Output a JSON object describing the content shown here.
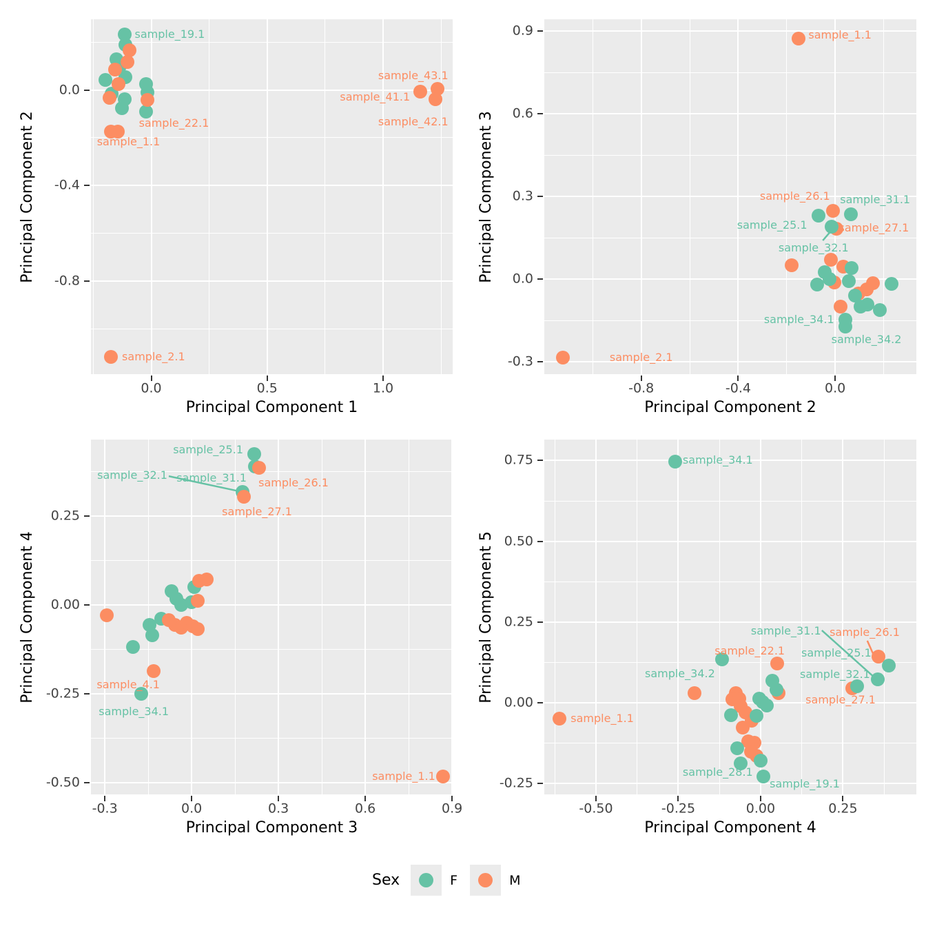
{
  "figure": {
    "background": "#ffffff",
    "panel_background": "#EBEBEB",
    "grid_color": "#FFFFFF",
    "tick_text_color": "#444444",
    "axis_title_color": "#000000"
  },
  "legend": {
    "title": "Sex",
    "position": "bottom",
    "entries": [
      {
        "label": "F",
        "color": "#66C2A5"
      },
      {
        "label": "M",
        "color": "#FC8D62"
      }
    ]
  },
  "sex_colors": {
    "F": "#66C2A5",
    "M": "#FC8D62"
  },
  "chart_data": [
    {
      "type": "scatter",
      "name": "pc1-vs-pc2",
      "xlabel": "Principal Component 1",
      "ylabel": "Principal Component 2",
      "xlim": [
        -0.26,
        1.3
      ],
      "ylim": [
        -1.19,
        0.296
      ],
      "grid": true,
      "xticks": [
        {
          "v": 0.0,
          "label": "0.0"
        },
        {
          "v": 0.5,
          "label": "0.5"
        },
        {
          "v": 1.0,
          "label": "1.0"
        }
      ],
      "yticks": [
        {
          "v": 0.0,
          "label": "0.0"
        },
        {
          "v": -0.4,
          "label": "-0.4"
        },
        {
          "v": -0.8,
          "label": "-0.8"
        }
      ],
      "points": [
        {
          "x": -0.113,
          "y": 0.232,
          "sex": "F",
          "sample": "sample_19.1"
        },
        {
          "x": -0.11,
          "y": 0.188,
          "sex": "F"
        },
        {
          "x": -0.149,
          "y": 0.13,
          "sex": "F"
        },
        {
          "x": -0.134,
          "y": 0.099,
          "sex": "F"
        },
        {
          "x": -0.199,
          "y": 0.043,
          "sex": "F"
        },
        {
          "x": -0.11,
          "y": 0.055,
          "sex": "F"
        },
        {
          "x": -0.17,
          "y": -0.017,
          "sex": "F"
        },
        {
          "x": -0.113,
          "y": -0.038,
          "sex": "F"
        },
        {
          "x": -0.125,
          "y": -0.075,
          "sex": "F"
        },
        {
          "x": -0.021,
          "y": 0.026,
          "sex": "F"
        },
        {
          "x": -0.015,
          "y": -0.009,
          "sex": "F"
        },
        {
          "x": -0.021,
          "y": -0.09,
          "sex": "F"
        },
        {
          "x": -0.095,
          "y": 0.165,
          "sex": "M"
        },
        {
          "x": -0.104,
          "y": 0.116,
          "sex": "M"
        },
        {
          "x": -0.155,
          "y": 0.084,
          "sex": "M"
        },
        {
          "x": -0.14,
          "y": 0.026,
          "sex": "M"
        },
        {
          "x": -0.179,
          "y": -0.032,
          "sex": "M"
        },
        {
          "x": -0.015,
          "y": -0.043,
          "sex": "M"
        },
        {
          "x": -0.173,
          "y": -0.174,
          "sex": "M",
          "sample": "sample_1.1"
        },
        {
          "x": -0.143,
          "y": -0.174,
          "sex": "M",
          "sample": "sample_22.1"
        },
        {
          "x": -0.175,
          "y": -1.119,
          "sex": "M",
          "sample": "sample_2.1"
        },
        {
          "x": 1.16,
          "y": -0.008,
          "sex": "M",
          "sample": "sample_41.1"
        },
        {
          "x": 1.235,
          "y": 0.004,
          "sex": "M",
          "sample": "sample_43.1"
        },
        {
          "x": 1.225,
          "y": -0.038,
          "sex": "M",
          "sample": "sample_42.1"
        }
      ],
      "labels": [
        {
          "text": "sample_19.1",
          "sex": "F",
          "x": 0.08,
          "y": 0.232
        },
        {
          "text": "sample_43.1",
          "sex": "M",
          "x": 1.13,
          "y": 0.06
        },
        {
          "text": "sample_41.1",
          "sex": "M",
          "x": 0.965,
          "y": -0.03
        },
        {
          "text": "sample_42.1",
          "sex": "M",
          "x": 1.13,
          "y": -0.135
        },
        {
          "text": "sample_22.1",
          "sex": "M",
          "x": 0.098,
          "y": -0.139
        },
        {
          "text": "sample_1.1",
          "sex": "M",
          "x": -0.098,
          "y": -0.217
        },
        {
          "text": "sample_2.1",
          "sex": "M",
          "x": 0.01,
          "y": -1.119
        }
      ],
      "leaders": []
    },
    {
      "type": "scatter",
      "name": "pc2-vs-pc3",
      "xlabel": "Principal Component 2",
      "ylabel": "Principal Component 3",
      "xlim": [
        -1.2,
        0.335
      ],
      "ylim": [
        -0.345,
        0.943
      ],
      "grid": true,
      "xticks": [
        {
          "v": -0.8,
          "label": "-0.8"
        },
        {
          "v": -0.4,
          "label": "-0.4"
        },
        {
          "v": 0.0,
          "label": "0.0"
        }
      ],
      "yticks": [
        {
          "v": 0.9,
          "label": "0.9"
        },
        {
          "v": 0.6,
          "label": "0.6"
        },
        {
          "v": 0.3,
          "label": "0.3"
        },
        {
          "v": 0.0,
          "label": "0.0"
        },
        {
          "v": -0.3,
          "label": "-0.3"
        }
      ],
      "points": [
        {
          "x": -0.151,
          "y": 0.872,
          "sex": "M",
          "sample": "sample_1.1"
        },
        {
          "x": -1.123,
          "y": -0.285,
          "sex": "M",
          "sample": "sample_2.1"
        },
        {
          "x": -0.009,
          "y": 0.247,
          "sex": "M",
          "sample": "sample_26.1"
        },
        {
          "x": 0.006,
          "y": 0.182,
          "sex": "M",
          "sample": "sample_27.1"
        },
        {
          "x": -0.18,
          "y": 0.051,
          "sex": "M"
        },
        {
          "x": -0.017,
          "y": 0.071,
          "sex": "M"
        },
        {
          "x": 0.034,
          "y": 0.046,
          "sex": "M"
        },
        {
          "x": -0.003,
          "y": -0.012,
          "sex": "M"
        },
        {
          "x": 0.097,
          "y": -0.052,
          "sex": "M"
        },
        {
          "x": 0.157,
          "y": -0.015,
          "sex": "M"
        },
        {
          "x": 0.129,
          "y": -0.037,
          "sex": "M"
        },
        {
          "x": 0.023,
          "y": -0.1,
          "sex": "M"
        },
        {
          "x": -0.069,
          "y": 0.231,
          "sex": "F",
          "sample": "sample_25.1"
        },
        {
          "x": 0.066,
          "y": 0.236,
          "sex": "F",
          "sample": "sample_31.1"
        },
        {
          "x": -0.014,
          "y": 0.189,
          "sex": "F",
          "sample": "sample_32.1"
        },
        {
          "x": 0.069,
          "y": 0.041,
          "sex": "F"
        },
        {
          "x": -0.043,
          "y": 0.024,
          "sex": "F"
        },
        {
          "x": -0.023,
          "y": 0.0,
          "sex": "F"
        },
        {
          "x": -0.074,
          "y": -0.02,
          "sex": "F"
        },
        {
          "x": 0.057,
          "y": -0.007,
          "sex": "F"
        },
        {
          "x": 0.234,
          "y": -0.018,
          "sex": "F"
        },
        {
          "x": 0.083,
          "y": -0.061,
          "sex": "F"
        },
        {
          "x": 0.106,
          "y": -0.1,
          "sex": "F"
        },
        {
          "x": 0.134,
          "y": -0.093,
          "sex": "F"
        },
        {
          "x": 0.183,
          "y": -0.113,
          "sex": "F"
        },
        {
          "x": 0.043,
          "y": -0.147,
          "sex": "F",
          "sample": "sample_34.1"
        },
        {
          "x": 0.043,
          "y": -0.172,
          "sex": "F",
          "sample": "sample_34.2"
        }
      ],
      "labels": [
        {
          "text": "sample_1.1",
          "sex": "M",
          "x": 0.02,
          "y": 0.885
        },
        {
          "text": "sample_26.1",
          "sex": "M",
          "x": -0.166,
          "y": 0.3
        },
        {
          "text": "sample_31.1",
          "sex": "F",
          "x": 0.165,
          "y": 0.288
        },
        {
          "text": "sample_25.1",
          "sex": "F",
          "x": -0.26,
          "y": 0.194
        },
        {
          "text": "sample_27.1",
          "sex": "M",
          "x": 0.16,
          "y": 0.186
        },
        {
          "text": "sample_32.1",
          "sex": "F",
          "x": -0.089,
          "y": 0.112
        },
        {
          "text": "sample_34.1",
          "sex": "F",
          "x": -0.149,
          "y": -0.147
        },
        {
          "text": "sample_34.2",
          "sex": "F",
          "x": 0.129,
          "y": -0.221
        },
        {
          "text": "sample_2.1",
          "sex": "M",
          "x": -0.8,
          "y": -0.285
        }
      ],
      "leaders": [
        {
          "sex": "F",
          "x1": -0.051,
          "y1": 0.14,
          "x2": -0.016,
          "y2": 0.176
        }
      ]
    },
    {
      "type": "scatter",
      "name": "pc3-vs-pc4",
      "xlabel": "Principal Component 3",
      "ylabel": "Principal Component 4",
      "xlim": [
        -0.348,
        0.902
      ],
      "ylim": [
        -0.533,
        0.465
      ],
      "grid": true,
      "xticks": [
        {
          "v": -0.3,
          "label": "-0.3"
        },
        {
          "v": 0.0,
          "label": "0.0"
        },
        {
          "v": 0.3,
          "label": "0.3"
        },
        {
          "v": 0.6,
          "label": "0.6"
        },
        {
          "v": 0.9,
          "label": "0.9"
        }
      ],
      "yticks": [
        {
          "v": 0.25,
          "label": "0.25"
        },
        {
          "v": 0.0,
          "label": "0.00"
        },
        {
          "v": -0.25,
          "label": "-0.25"
        },
        {
          "v": -0.5,
          "label": "-0.50"
        }
      ],
      "points": [
        {
          "x": 0.217,
          "y": 0.424,
          "sex": "F",
          "sample": "sample_25.1"
        },
        {
          "x": 0.219,
          "y": 0.39,
          "sex": "F",
          "sample": "sample_31.1"
        },
        {
          "x": 0.176,
          "y": 0.318,
          "sex": "F",
          "sample": "sample_32.1"
        },
        {
          "x": -0.069,
          "y": 0.039,
          "sex": "F"
        },
        {
          "x": -0.052,
          "y": 0.017,
          "sex": "F"
        },
        {
          "x": -0.036,
          "y": 0.0,
          "sex": "F"
        },
        {
          "x": 0.01,
          "y": 0.05,
          "sex": "F"
        },
        {
          "x": 0.0,
          "y": 0.008,
          "sex": "F"
        },
        {
          "x": -0.105,
          "y": -0.039,
          "sex": "F"
        },
        {
          "x": -0.145,
          "y": -0.056,
          "sex": "F"
        },
        {
          "x": -0.136,
          "y": -0.085,
          "sex": "F"
        },
        {
          "x": -0.202,
          "y": -0.118,
          "sex": "F"
        },
        {
          "x": -0.174,
          "y": -0.25,
          "sex": "F",
          "sample": "sample_34.1"
        },
        {
          "x": 0.233,
          "y": 0.386,
          "sex": "M",
          "sample": "sample_26.1"
        },
        {
          "x": 0.181,
          "y": 0.304,
          "sex": "M",
          "sample": "sample_27.1"
        },
        {
          "x": -0.293,
          "y": -0.029,
          "sex": "M"
        },
        {
          "x": 0.026,
          "y": 0.068,
          "sex": "M"
        },
        {
          "x": 0.052,
          "y": 0.072,
          "sex": "M"
        },
        {
          "x": 0.021,
          "y": 0.012,
          "sex": "M"
        },
        {
          "x": -0.079,
          "y": -0.043,
          "sex": "M"
        },
        {
          "x": -0.057,
          "y": -0.056,
          "sex": "M"
        },
        {
          "x": -0.036,
          "y": -0.064,
          "sex": "M"
        },
        {
          "x": -0.017,
          "y": -0.05,
          "sex": "M"
        },
        {
          "x": 0.005,
          "y": -0.06,
          "sex": "M"
        },
        {
          "x": 0.021,
          "y": -0.068,
          "sex": "M"
        },
        {
          "x": -0.131,
          "y": -0.186,
          "sex": "M",
          "sample": "sample_4.1"
        },
        {
          "x": 0.869,
          "y": -0.483,
          "sex": "M",
          "sample": "sample_1.1"
        }
      ],
      "labels": [
        {
          "text": "sample_25.1",
          "sex": "F",
          "x": 0.057,
          "y": 0.436
        },
        {
          "text": "sample_32.1",
          "sex": "F",
          "x": -0.205,
          "y": 0.364
        },
        {
          "text": "sample_31.1",
          "sex": "F",
          "x": 0.069,
          "y": 0.357
        },
        {
          "text": "sample_26.1",
          "sex": "M",
          "x": 0.352,
          "y": 0.343
        },
        {
          "text": "sample_27.1",
          "sex": "M",
          "x": 0.226,
          "y": 0.262
        },
        {
          "text": "sample_4.1",
          "sex": "M",
          "x": -0.219,
          "y": -0.225
        },
        {
          "text": "sample_34.1",
          "sex": "F",
          "x": -0.2,
          "y": -0.3
        },
        {
          "text": "sample_1.1",
          "sex": "M",
          "x": 0.733,
          "y": -0.483
        }
      ],
      "leaders": [
        {
          "sex": "F",
          "x1": -0.079,
          "y1": 0.362,
          "x2": 0.162,
          "y2": 0.32
        }
      ]
    },
    {
      "type": "scatter",
      "name": "pc4-vs-pc5",
      "xlabel": "Principal Component 4",
      "ylabel": "Principal Component 5",
      "xlim": [
        -0.657,
        0.473
      ],
      "ylim": [
        -0.284,
        0.815
      ],
      "grid": true,
      "xticks": [
        {
          "v": -0.5,
          "label": "-0.50"
        },
        {
          "v": -0.25,
          "label": "-0.25"
        },
        {
          "v": 0.0,
          "label": "0.00"
        },
        {
          "v": 0.25,
          "label": "0.25"
        }
      ],
      "yticks": [
        {
          "v": 0.75,
          "label": "0.75"
        },
        {
          "v": 0.5,
          "label": "0.50"
        },
        {
          "v": 0.25,
          "label": "0.25"
        },
        {
          "v": 0.0,
          "label": "0.00"
        },
        {
          "v": -0.25,
          "label": "-0.25"
        }
      ],
      "points": [
        {
          "x": -0.611,
          "y": -0.049,
          "sex": "M",
          "sample": "sample_1.1"
        },
        {
          "x": -0.2,
          "y": 0.03,
          "sex": "M"
        },
        {
          "x": 0.05,
          "y": 0.122,
          "sex": "M",
          "sample": "sample_22.1"
        },
        {
          "x": 0.055,
          "y": 0.03,
          "sex": "M"
        },
        {
          "x": -0.075,
          "y": 0.03,
          "sex": "M"
        },
        {
          "x": -0.085,
          "y": 0.01,
          "sex": "M"
        },
        {
          "x": -0.065,
          "y": 0.012,
          "sex": "M"
        },
        {
          "x": -0.06,
          "y": -0.01,
          "sex": "M"
        },
        {
          "x": -0.045,
          "y": -0.03,
          "sex": "M"
        },
        {
          "x": -0.028,
          "y": -0.055,
          "sex": "M"
        },
        {
          "x": -0.055,
          "y": -0.078,
          "sex": "M"
        },
        {
          "x": -0.038,
          "y": -0.12,
          "sex": "M"
        },
        {
          "x": -0.018,
          "y": -0.125,
          "sex": "M"
        },
        {
          "x": -0.03,
          "y": -0.152,
          "sex": "M"
        },
        {
          "x": -0.012,
          "y": -0.165,
          "sex": "M"
        },
        {
          "x": 0.278,
          "y": 0.045,
          "sex": "M",
          "sample": "sample_27.1"
        },
        {
          "x": 0.358,
          "y": 0.143,
          "sex": "M",
          "sample": "sample_26.1"
        },
        {
          "x": -0.259,
          "y": 0.747,
          "sex": "F",
          "sample": "sample_34.1"
        },
        {
          "x": -0.117,
          "y": 0.134,
          "sex": "F",
          "sample": "sample_34.2"
        },
        {
          "x": 0.035,
          "y": 0.068,
          "sex": "F"
        },
        {
          "x": 0.048,
          "y": 0.04,
          "sex": "F"
        },
        {
          "x": -0.005,
          "y": 0.012,
          "sex": "F"
        },
        {
          "x": 0.007,
          "y": 0.002,
          "sex": "F"
        },
        {
          "x": 0.018,
          "y": -0.008,
          "sex": "F"
        },
        {
          "x": -0.012,
          "y": -0.04,
          "sex": "F"
        },
        {
          "x": -0.09,
          "y": -0.038,
          "sex": "F"
        },
        {
          "x": -0.072,
          "y": -0.142,
          "sex": "F"
        },
        {
          "x": -0.06,
          "y": -0.188,
          "sex": "F"
        },
        {
          "x": 0.0,
          "y": -0.179,
          "sex": "F",
          "sample": "sample_28.1"
        },
        {
          "x": 0.008,
          "y": -0.228,
          "sex": "F",
          "sample": "sample_19.1"
        },
        {
          "x": 0.293,
          "y": 0.051,
          "sex": "F"
        },
        {
          "x": 0.356,
          "y": 0.072,
          "sex": "F",
          "sample": "sample_32.1"
        },
        {
          "x": 0.389,
          "y": 0.115,
          "sex": "F",
          "sample": "sample_25.1"
        }
      ],
      "labels": [
        {
          "text": "sample_34.1",
          "sex": "F",
          "x": -0.13,
          "y": 0.75
        },
        {
          "text": "sample_34.2",
          "sex": "F",
          "x": -0.245,
          "y": 0.09
        },
        {
          "text": "sample_1.1",
          "sex": "M",
          "x": -0.481,
          "y": -0.049
        },
        {
          "text": "sample_22.1",
          "sex": "M",
          "x": -0.033,
          "y": 0.16
        },
        {
          "text": "sample_31.1",
          "sex": "F",
          "x": 0.077,
          "y": 0.222
        },
        {
          "text": "sample_26.1",
          "sex": "M",
          "x": 0.316,
          "y": 0.218
        },
        {
          "text": "sample_25.1",
          "sex": "F",
          "x": 0.23,
          "y": 0.154
        },
        {
          "text": "sample_32.1",
          "sex": "F",
          "x": 0.226,
          "y": 0.087
        },
        {
          "text": "sample_27.1",
          "sex": "M",
          "x": 0.243,
          "y": 0.009
        },
        {
          "text": "sample_28.1",
          "sex": "F",
          "x": -0.13,
          "y": -0.215
        },
        {
          "text": "sample_19.1",
          "sex": "F",
          "x": 0.134,
          "y": -0.252
        }
      ],
      "leaders": [
        {
          "sex": "F",
          "x1": 0.186,
          "y1": 0.224,
          "x2": 0.347,
          "y2": 0.077
        },
        {
          "sex": "M",
          "x1": 0.324,
          "y1": 0.192,
          "x2": 0.347,
          "y2": 0.139
        }
      ]
    }
  ]
}
